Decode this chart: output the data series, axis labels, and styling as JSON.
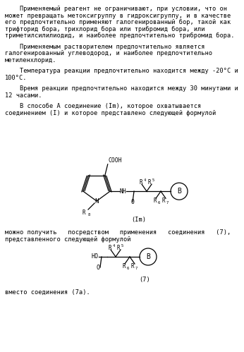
{
  "background_color": "#ffffff",
  "text_color": "#000000",
  "font_size": 6.2,
  "paragraphs": [
    "    Применяемый реагент не ограничивают, при условии, что он\nможет превращать метоксигруппу в гидроксигруппу, и в качестве\nего предпочтительно применяют галогенированный бор, такой как\nтрифторид бора, трихлорид бора или трибромид бора, или\nтриметилсилилиодид, и наиболее предпочтительно трибромид бора.",
    "    Применяемым растворителем предпочтительно является\nгалогенированный углеводород, и наиболее предпочтительно\nметиленхлорид.",
    "    Температура реакции предпочтительно находится между -20°C и\n100°C.",
    "    Время реакции предпочтительно находится между 30 минутами и\n12 часами.",
    "    В способе A соединение (Im), которое охватывается\nсоединением (I) и которое представлено следующей формулой"
  ],
  "between_text": [
    "можно получить   посредством   применения   соединения   (7),",
    "представленного следующей формулой"
  ],
  "footer_text": "вместо соединения (7а).",
  "mol1_label": "(Im)",
  "mol2_label": "(7)"
}
